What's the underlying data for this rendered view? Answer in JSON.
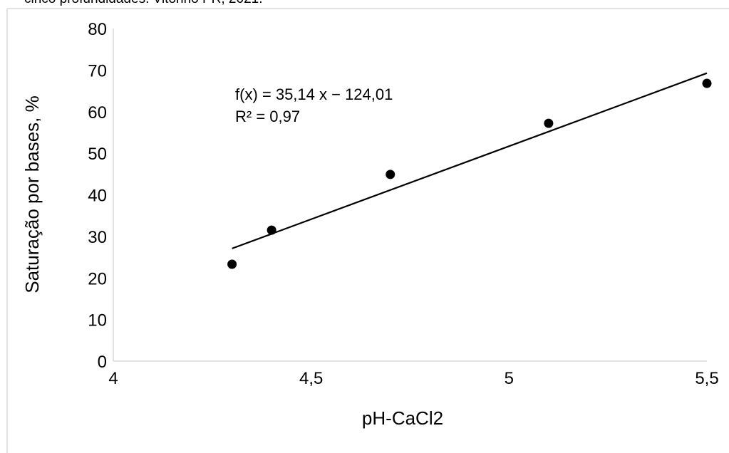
{
  "caption": "cinco profundidades. Vitorino PR, 2021.",
  "chart_data": {
    "type": "scatter",
    "xlabel": "pH-CaCl2",
    "ylabel": "Saturação por bases, %",
    "xlim": [
      4,
      5.5
    ],
    "ylim": [
      0,
      80
    ],
    "x_ticks": [
      "4",
      "4,5",
      "5",
      "5,5"
    ],
    "y_ticks": [
      "0",
      "10",
      "20",
      "30",
      "40",
      "50",
      "60",
      "70",
      "80"
    ],
    "grid": false,
    "series": [
      {
        "x": [
          4.3,
          4.4,
          4.7,
          5.1,
          5.5
        ],
        "y": [
          23.3,
          31.5,
          44.9,
          57.2,
          66.8
        ]
      }
    ],
    "trendline": {
      "slope": 35.14,
      "intercept": -124.01,
      "x_range": [
        4.3,
        5.5
      ],
      "equation": "f(x) = 35,14 x − 124,01",
      "r_squared": "R² = 0,97"
    }
  }
}
